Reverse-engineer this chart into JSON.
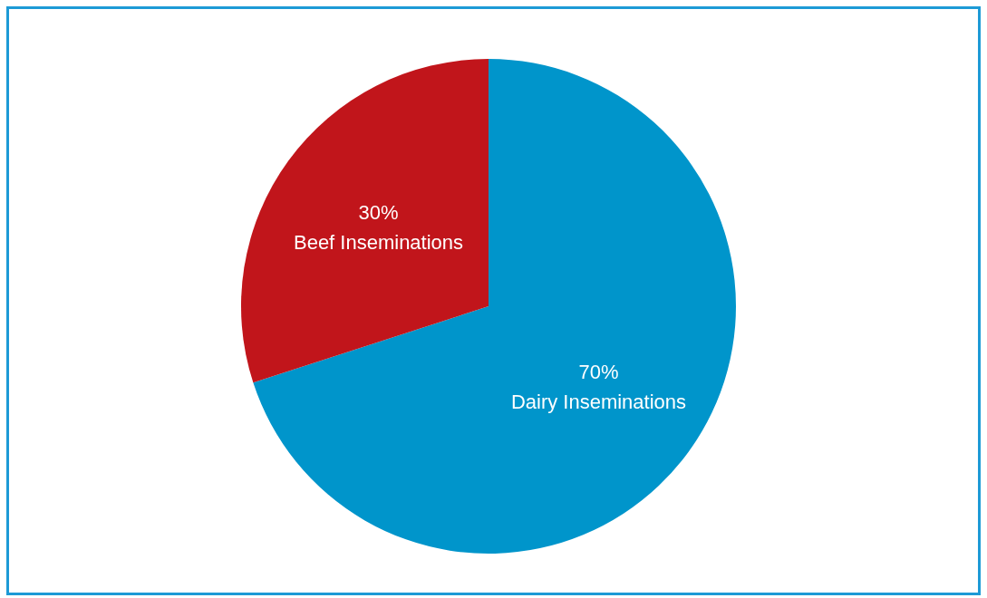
{
  "chart_data": {
    "type": "pie",
    "categories": [
      "Dairy Inseminations",
      "Beef Inseminations"
    ],
    "values": [
      70,
      30
    ],
    "colors": [
      "#0095cb",
      "#c1151b"
    ],
    "value_labels": [
      "70%",
      "30%"
    ]
  }
}
